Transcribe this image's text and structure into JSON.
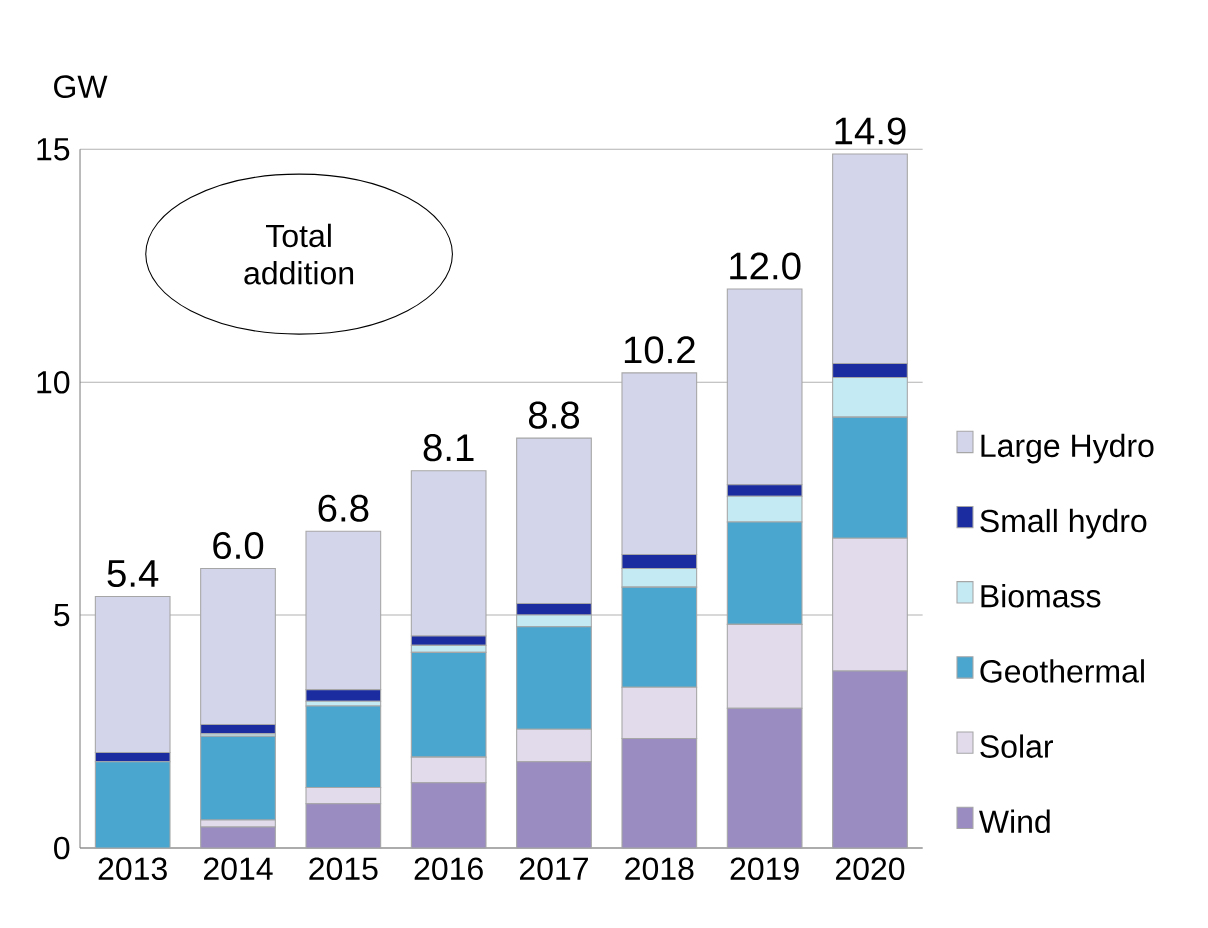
{
  "chart_data": {
    "type": "bar",
    "stacked": true,
    "ylabel": "GW",
    "categories": [
      "2013",
      "2014",
      "2015",
      "2016",
      "2017",
      "2018",
      "2019",
      "2020"
    ],
    "series": [
      {
        "name": "Wind",
        "color": "#9a8cc0",
        "values": [
          0,
          0.45,
          0.95,
          1.4,
          1.85,
          2.35,
          3.0,
          3.8
        ]
      },
      {
        "name": "Solar",
        "color": "#e2dbec",
        "values": [
          0,
          0.15,
          0.35,
          0.55,
          0.7,
          1.1,
          1.8,
          2.85
        ]
      },
      {
        "name": "Geothermal",
        "color": "#4aa6cf",
        "values": [
          1.85,
          1.8,
          1.75,
          2.25,
          2.2,
          2.15,
          2.2,
          2.6
        ]
      },
      {
        "name": "Biomass",
        "color": "#c4ebf4",
        "values": [
          0,
          0.05,
          0.1,
          0.15,
          0.25,
          0.4,
          0.55,
          0.85
        ]
      },
      {
        "name": "Small hydro",
        "color": "#1a2ca0",
        "values": [
          0.2,
          0.2,
          0.25,
          0.2,
          0.25,
          0.3,
          0.25,
          0.3
        ]
      },
      {
        "name": "Large Hydro",
        "color": "#d3d5ea",
        "values": [
          3.35,
          3.35,
          3.4,
          3.55,
          3.55,
          3.9,
          4.2,
          4.5
        ]
      }
    ],
    "totals": [
      "5.4",
      "6.0",
      "6.8",
      "8.1",
      "8.8",
      "10.2",
      "12.0",
      "14.9"
    ],
    "ylim": [
      0,
      15
    ],
    "yticks": [
      0,
      5,
      10,
      15
    ],
    "grid": "y",
    "legend": "right",
    "annotations": [
      "Total addition"
    ]
  }
}
